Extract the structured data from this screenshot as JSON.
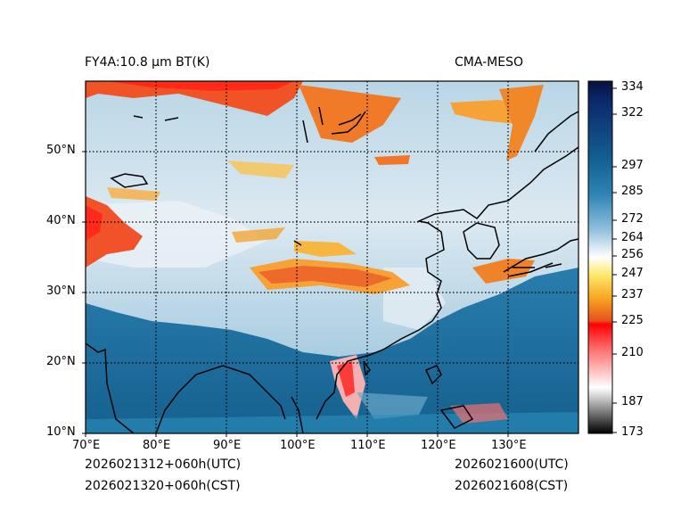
{
  "header": {
    "product": "FY4A:10.8 µm BT(K)",
    "model": "CMA-MESO"
  },
  "footer": {
    "init_utc": "2026021312+060h(UTC)",
    "init_cst": "2026021320+060h(CST)",
    "valid_utc": "2026021600(UTC)",
    "valid_cst": "2026021608(CST)"
  },
  "axes": {
    "lon_labels": [
      "70°E",
      "80°E",
      "90°E",
      "100°E",
      "110°E",
      "120°E",
      "130°E"
    ],
    "lat_labels": [
      "10°N",
      "20°N",
      "30°N",
      "40°N",
      "50°N"
    ]
  },
  "colorbar": {
    "labels": [
      "334",
      "322",
      "297",
      "285",
      "272",
      "264",
      "256",
      "247",
      "237",
      "225",
      "210",
      "187",
      "173"
    ]
  },
  "colors": {
    "ocean": "#1f6e9a",
    "cold_cloud": "#e9572a",
    "cirrus": "#f4a533",
    "land_cloud": "#c9dde9",
    "coast": "#000000"
  }
}
